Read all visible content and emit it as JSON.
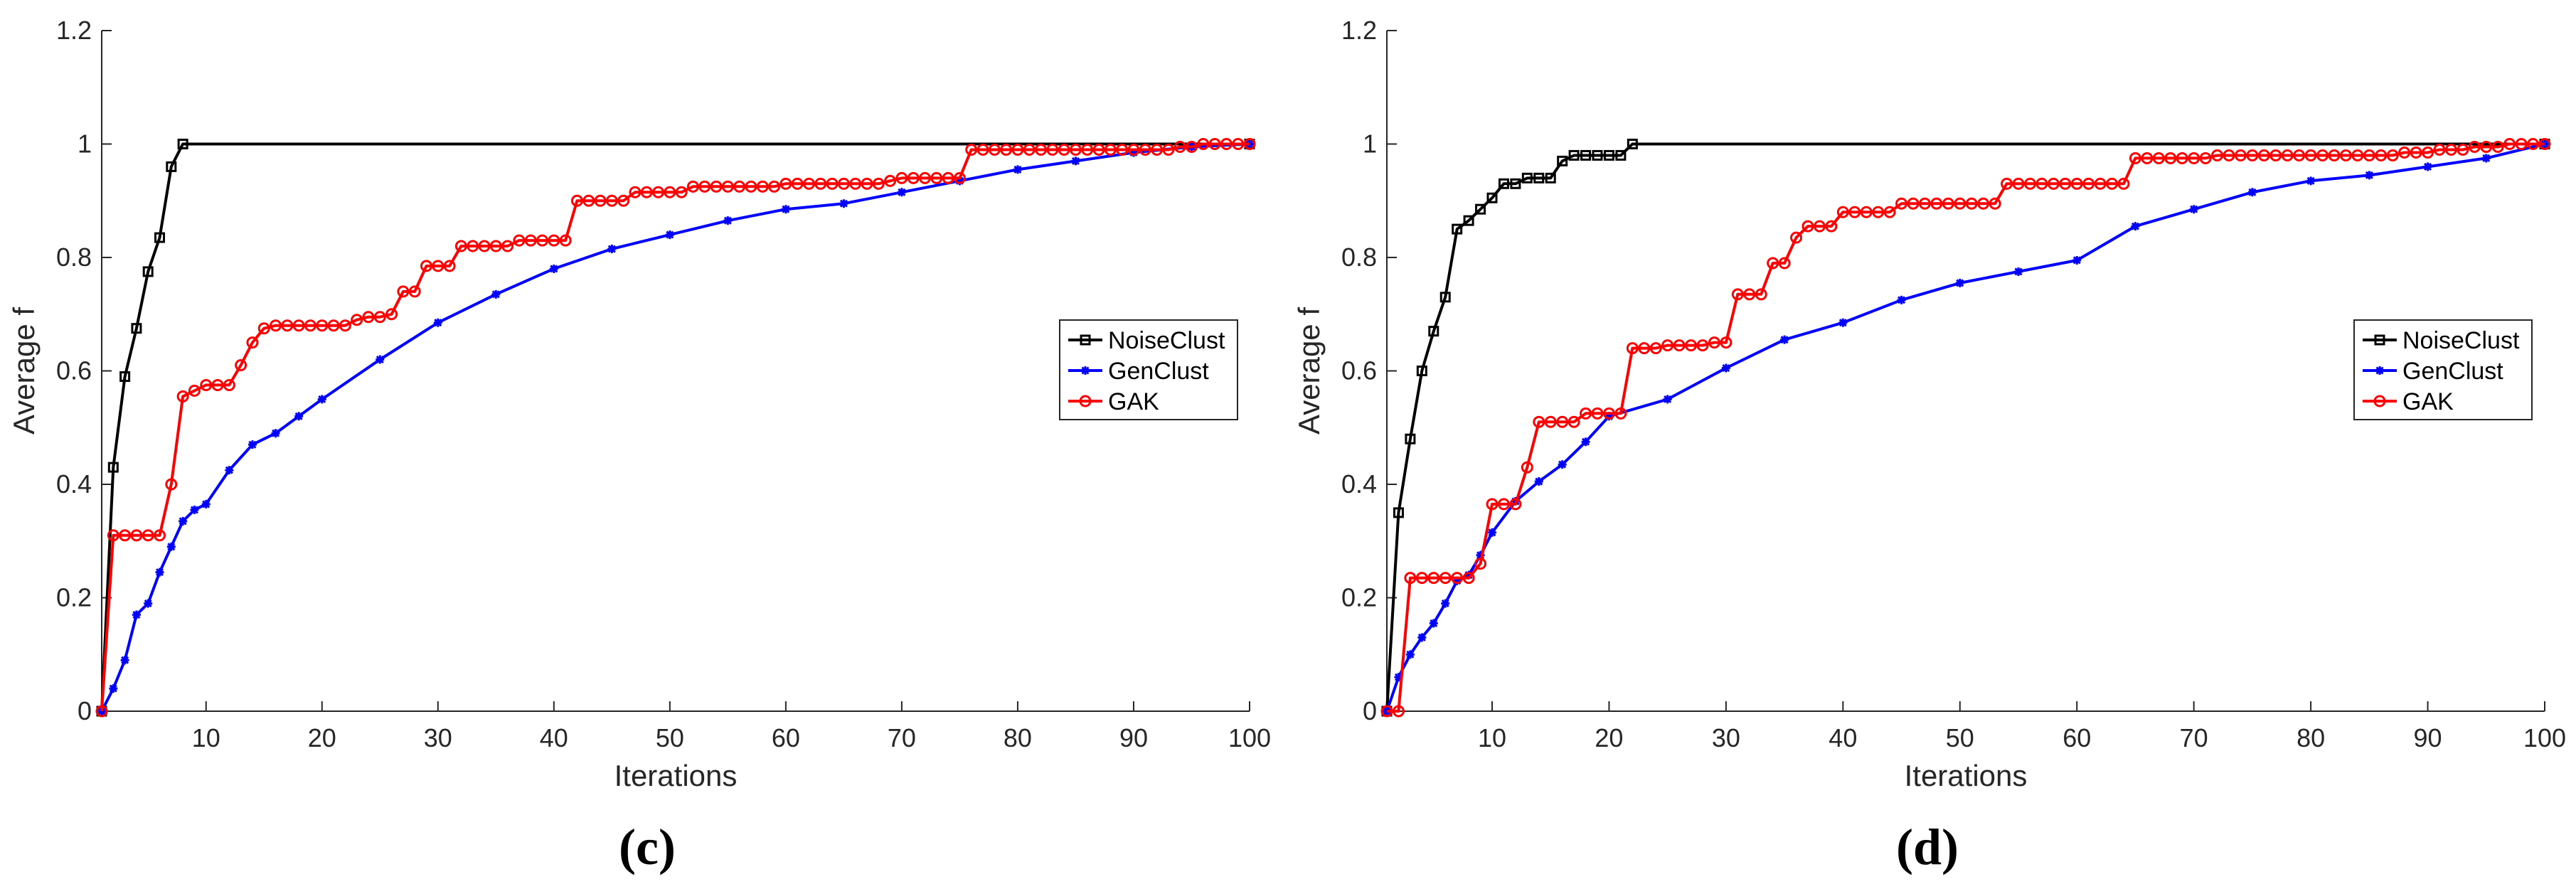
{
  "colors": {
    "NoiseClust": "#000000",
    "GenClust": "#0000ff",
    "GAK": "#ff0000"
  },
  "chart_data": [
    {
      "type": "line",
      "panel_label": "(c)",
      "xlabel": "Iterations",
      "ylabel": "Average f",
      "xlim": [
        1,
        100
      ],
      "ylim": [
        0,
        1.2
      ],
      "xticks": [
        "10",
        "20",
        "30",
        "40",
        "50",
        "60",
        "70",
        "80",
        "90",
        "100"
      ],
      "yticks": [
        "0",
        "0.2",
        "0.4",
        "0.6",
        "0.8",
        "1",
        "1.2"
      ],
      "legend": [
        "NoiseClust",
        "GenClust",
        "GAK"
      ],
      "series": [
        {
          "name": "NoiseClust",
          "marker": "square",
          "x": [
            1,
            2,
            3,
            4,
            5,
            6,
            7,
            8,
            100
          ],
          "y": [
            0,
            0.43,
            0.59,
            0.675,
            0.775,
            0.835,
            0.96,
            1,
            1
          ]
        },
        {
          "name": "GenClust",
          "marker": "star",
          "x": [
            1,
            2,
            3,
            4,
            5,
            6,
            7,
            8,
            9,
            10,
            12,
            14,
            16,
            18,
            20,
            25,
            30,
            35,
            40,
            45,
            50,
            55,
            60,
            65,
            70,
            75,
            80,
            85,
            90,
            95,
            100
          ],
          "y": [
            0,
            0.04,
            0.09,
            0.17,
            0.19,
            0.245,
            0.29,
            0.335,
            0.355,
            0.365,
            0.425,
            0.47,
            0.49,
            0.52,
            0.55,
            0.62,
            0.685,
            0.735,
            0.78,
            0.815,
            0.84,
            0.865,
            0.885,
            0.895,
            0.915,
            0.935,
            0.955,
            0.97,
            0.985,
            0.995,
            1
          ]
        },
        {
          "name": "GAK",
          "marker": "circle",
          "x": [
            1,
            2,
            3,
            4,
            5,
            6,
            7,
            8,
            9,
            10,
            11,
            12,
            13,
            14,
            15,
            16,
            17,
            18,
            19,
            20,
            21,
            22,
            23,
            24,
            25,
            26,
            27,
            28,
            29,
            30,
            31,
            32,
            33,
            34,
            35,
            36,
            37,
            38,
            39,
            40,
            41,
            42,
            43,
            44,
            45,
            46,
            47,
            48,
            49,
            50,
            51,
            52,
            53,
            54,
            55,
            56,
            57,
            58,
            59,
            60,
            61,
            62,
            63,
            64,
            65,
            66,
            67,
            68,
            69,
            70,
            71,
            72,
            73,
            74,
            75,
            76,
            77,
            78,
            79,
            80,
            81,
            82,
            83,
            84,
            85,
            86,
            87,
            88,
            89,
            90,
            91,
            92,
            93,
            94,
            95,
            96,
            97,
            98,
            99,
            100
          ],
          "y": [
            0,
            0.31,
            0.31,
            0.31,
            0.31,
            0.31,
            0.4,
            0.555,
            0.565,
            0.575,
            0.575,
            0.575,
            0.61,
            0.65,
            0.675,
            0.68,
            0.68,
            0.68,
            0.68,
            0.68,
            0.68,
            0.68,
            0.69,
            0.695,
            0.695,
            0.7,
            0.74,
            0.74,
            0.785,
            0.785,
            0.785,
            0.82,
            0.82,
            0.82,
            0.82,
            0.82,
            0.83,
            0.83,
            0.83,
            0.83,
            0.83,
            0.9,
            0.9,
            0.9,
            0.9,
            0.9,
            0.915,
            0.915,
            0.915,
            0.915,
            0.915,
            0.925,
            0.925,
            0.925,
            0.925,
            0.925,
            0.925,
            0.925,
            0.925,
            0.93,
            0.93,
            0.93,
            0.93,
            0.93,
            0.93,
            0.93,
            0.93,
            0.93,
            0.935,
            0.94,
            0.94,
            0.94,
            0.94,
            0.94,
            0.94,
            0.99,
            0.99,
            0.99,
            0.99,
            0.99,
            0.99,
            0.99,
            0.99,
            0.99,
            0.99,
            0.99,
            0.99,
            0.99,
            0.99,
            0.99,
            0.99,
            0.99,
            0.99,
            0.995,
            0.995,
            1,
            1,
            1,
            1,
            1
          ]
        }
      ]
    },
    {
      "type": "line",
      "panel_label": "(d)",
      "xlabel": "Iterations",
      "ylabel": "Average f",
      "xlim": [
        1,
        100
      ],
      "ylim": [
        0,
        1.2
      ],
      "xticks": [
        "10",
        "20",
        "30",
        "40",
        "50",
        "60",
        "70",
        "80",
        "90",
        "100"
      ],
      "yticks": [
        "0",
        "0.2",
        "0.4",
        "0.6",
        "0.8",
        "1",
        "1.2"
      ],
      "legend": [
        "NoiseClust",
        "GenClust",
        "GAK"
      ],
      "series": [
        {
          "name": "NoiseClust",
          "marker": "square",
          "x": [
            1,
            2,
            3,
            4,
            5,
            6,
            7,
            8,
            9,
            10,
            11,
            12,
            13,
            14,
            15,
            16,
            17,
            18,
            19,
            20,
            21,
            22,
            100
          ],
          "y": [
            0,
            0.35,
            0.48,
            0.6,
            0.67,
            0.73,
            0.85,
            0.865,
            0.885,
            0.905,
            0.93,
            0.93,
            0.94,
            0.94,
            0.94,
            0.97,
            0.98,
            0.98,
            0.98,
            0.98,
            0.98,
            1,
            1
          ]
        },
        {
          "name": "GenClust",
          "marker": "star",
          "x": [
            1,
            2,
            3,
            4,
            5,
            6,
            7,
            8,
            9,
            10,
            12,
            14,
            16,
            18,
            20,
            25,
            30,
            35,
            40,
            45,
            50,
            55,
            60,
            65,
            70,
            75,
            80,
            85,
            90,
            95,
            100
          ],
          "y": [
            0,
            0.06,
            0.1,
            0.13,
            0.155,
            0.19,
            0.23,
            0.24,
            0.275,
            0.315,
            0.37,
            0.405,
            0.435,
            0.475,
            0.52,
            0.55,
            0.605,
            0.655,
            0.685,
            0.725,
            0.755,
            0.775,
            0.795,
            0.855,
            0.885,
            0.915,
            0.935,
            0.945,
            0.96,
            0.975,
            1
          ]
        },
        {
          "name": "GAK",
          "marker": "circle",
          "x": [
            1,
            2,
            3,
            4,
            5,
            6,
            7,
            8,
            9,
            10,
            11,
            12,
            13,
            14,
            15,
            16,
            17,
            18,
            19,
            20,
            21,
            22,
            23,
            24,
            25,
            26,
            27,
            28,
            29,
            30,
            31,
            32,
            33,
            34,
            35,
            36,
            37,
            38,
            39,
            40,
            41,
            42,
            43,
            44,
            45,
            46,
            47,
            48,
            49,
            50,
            51,
            52,
            53,
            54,
            55,
            56,
            57,
            58,
            59,
            60,
            61,
            62,
            63,
            64,
            65,
            66,
            67,
            68,
            69,
            70,
            71,
            72,
            73,
            74,
            75,
            76,
            77,
            78,
            79,
            80,
            81,
            82,
            83,
            84,
            85,
            86,
            87,
            88,
            89,
            90,
            91,
            92,
            93,
            94,
            95,
            96,
            97,
            98,
            99,
            100
          ],
          "y": [
            0,
            0,
            0.235,
            0.235,
            0.235,
            0.235,
            0.235,
            0.235,
            0.26,
            0.365,
            0.365,
            0.365,
            0.43,
            0.51,
            0.51,
            0.51,
            0.51,
            0.525,
            0.525,
            0.525,
            0.525,
            0.64,
            0.64,
            0.64,
            0.645,
            0.645,
            0.645,
            0.645,
            0.65,
            0.65,
            0.735,
            0.735,
            0.735,
            0.79,
            0.79,
            0.835,
            0.855,
            0.855,
            0.855,
            0.88,
            0.88,
            0.88,
            0.88,
            0.88,
            0.895,
            0.895,
            0.895,
            0.895,
            0.895,
            0.895,
            0.895,
            0.895,
            0.895,
            0.93,
            0.93,
            0.93,
            0.93,
            0.93,
            0.93,
            0.93,
            0.93,
            0.93,
            0.93,
            0.93,
            0.975,
            0.975,
            0.975,
            0.975,
            0.975,
            0.975,
            0.975,
            0.98,
            0.98,
            0.98,
            0.98,
            0.98,
            0.98,
            0.98,
            0.98,
            0.98,
            0.98,
            0.98,
            0.98,
            0.98,
            0.98,
            0.98,
            0.98,
            0.985,
            0.985,
            0.985,
            0.99,
            0.99,
            0.99,
            0.995,
            0.995,
            0.995,
            1,
            1,
            1,
            1
          ]
        }
      ]
    }
  ]
}
